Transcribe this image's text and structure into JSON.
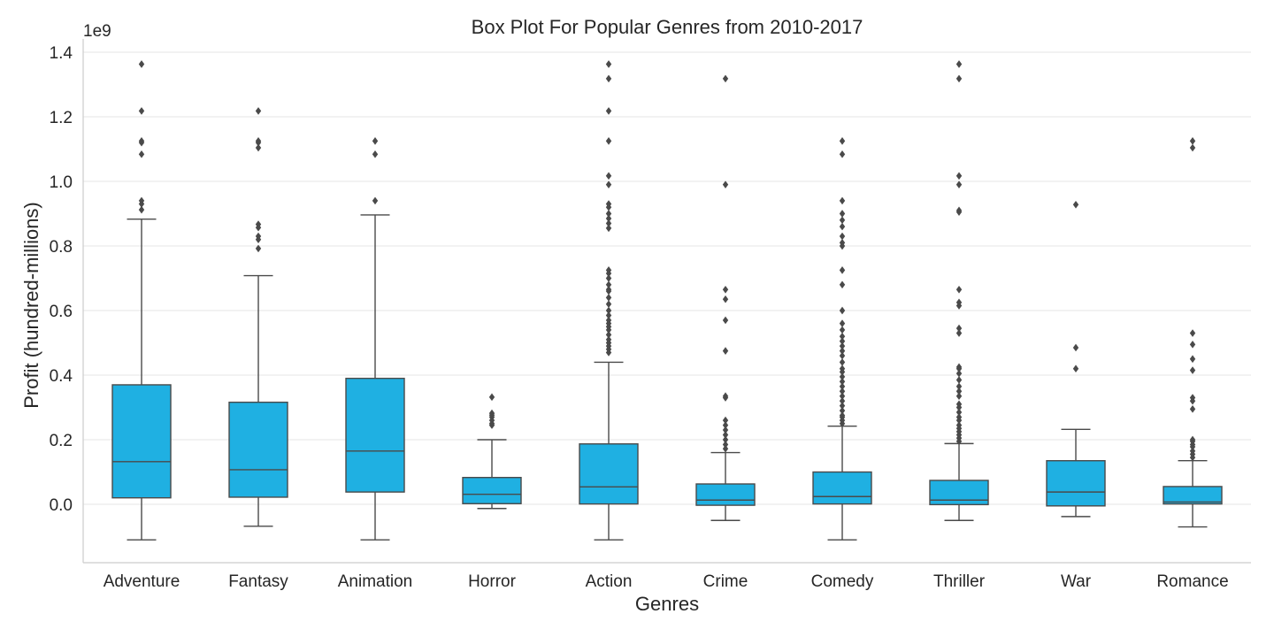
{
  "chart_data": {
    "type": "box",
    "title": "Box Plot For Popular Genres from 2010-2017",
    "xlabel": "Genres",
    "ylabel": "Profit (hundred-millions)",
    "y_offset_label": "1e9",
    "ylim": [
      -0.18,
      1.43
    ],
    "yticks": [
      0.0,
      0.2,
      0.4,
      0.6,
      0.8,
      1.0,
      1.2,
      1.4
    ],
    "ytick_labels": [
      "0.0",
      "0.2",
      "0.4",
      "0.6",
      "0.8",
      "1.0",
      "1.2",
      "1.4"
    ],
    "grid": true,
    "box_color": "#1fb0e2",
    "line_color": "#4a4a4a",
    "categories": [
      "Adventure",
      "Fantasy",
      "Animation",
      "Horror",
      "Action",
      "Crime",
      "Comedy",
      "Thriller",
      "War",
      "Romance"
    ],
    "boxes": [
      {
        "category": "Adventure",
        "whisker_low": -0.11,
        "q1": 0.02,
        "median": 0.132,
        "q3": 0.37,
        "whisker_high": 0.883,
        "outliers": [
          1.363,
          1.218,
          1.125,
          1.12,
          1.084,
          0.94,
          0.93,
          0.912
        ]
      },
      {
        "category": "Fantasy",
        "whisker_low": -0.068,
        "q1": 0.022,
        "median": 0.107,
        "q3": 0.316,
        "whisker_high": 0.708,
        "outliers": [
          1.218,
          1.125,
          1.12,
          1.104,
          0.867,
          0.857,
          0.83,
          0.82,
          0.792
        ]
      },
      {
        "category": "Animation",
        "whisker_low": -0.11,
        "q1": 0.038,
        "median": 0.165,
        "q3": 0.39,
        "whisker_high": 0.896,
        "outliers": [
          1.125,
          1.084,
          0.94
        ]
      },
      {
        "category": "Horror",
        "whisker_low": -0.013,
        "q1": 0.002,
        "median": 0.031,
        "q3": 0.083,
        "whisker_high": 0.2,
        "outliers": [
          0.332,
          0.282,
          0.276,
          0.27,
          0.26,
          0.25,
          0.245
        ]
      },
      {
        "category": "Action",
        "whisker_low": -0.11,
        "q1": 0.001,
        "median": 0.054,
        "q3": 0.187,
        "whisker_high": 0.44,
        "outliers": [
          1.363,
          1.318,
          1.218,
          1.125,
          1.017,
          0.99,
          0.93,
          0.92,
          0.9,
          0.885,
          0.87,
          0.855,
          0.725,
          0.715,
          0.7,
          0.68,
          0.665,
          0.66,
          0.64,
          0.62,
          0.6,
          0.585,
          0.57,
          0.56,
          0.55,
          0.54,
          0.525,
          0.51,
          0.5,
          0.49,
          0.48,
          0.47
        ]
      },
      {
        "category": "Crime",
        "whisker_low": -0.05,
        "q1": -0.003,
        "median": 0.013,
        "q3": 0.063,
        "whisker_high": 0.16,
        "outliers": [
          1.318,
          0.99,
          0.665,
          0.635,
          0.57,
          0.475,
          0.335,
          0.33,
          0.26,
          0.245,
          0.23,
          0.215,
          0.2,
          0.185,
          0.172
        ]
      },
      {
        "category": "Comedy",
        "whisker_low": -0.11,
        "q1": 0.001,
        "median": 0.024,
        "q3": 0.1,
        "whisker_high": 0.242,
        "outliers": [
          1.125,
          1.084,
          0.94,
          0.9,
          0.88,
          0.86,
          0.83,
          0.81,
          0.8,
          0.725,
          0.68,
          0.6,
          0.56,
          0.54,
          0.52,
          0.505,
          0.49,
          0.475,
          0.46,
          0.44,
          0.42,
          0.41,
          0.395,
          0.38,
          0.365,
          0.35,
          0.335,
          0.32,
          0.305,
          0.29,
          0.275,
          0.27,
          0.26,
          0.25
        ]
      },
      {
        "category": "Thriller",
        "whisker_low": -0.05,
        "q1": -0.001,
        "median": 0.013,
        "q3": 0.074,
        "whisker_high": 0.188,
        "outliers": [
          1.363,
          1.318,
          1.017,
          0.99,
          0.91,
          0.905,
          0.665,
          0.625,
          0.615,
          0.545,
          0.53,
          0.425,
          0.42,
          0.405,
          0.385,
          0.365,
          0.35,
          0.335,
          0.31,
          0.3,
          0.285,
          0.27,
          0.26,
          0.245,
          0.235,
          0.225,
          0.215,
          0.205,
          0.195
        ]
      },
      {
        "category": "War",
        "whisker_low": -0.038,
        "q1": -0.005,
        "median": 0.038,
        "q3": 0.135,
        "whisker_high": 0.232,
        "outliers": [
          0.928,
          0.485,
          0.42
        ]
      },
      {
        "category": "Romance",
        "whisker_low": -0.07,
        "q1": 0.001,
        "median": 0.007,
        "q3": 0.055,
        "whisker_high": 0.135,
        "outliers": [
          1.125,
          1.104,
          0.53,
          0.495,
          0.45,
          0.415,
          0.33,
          0.32,
          0.295,
          0.2,
          0.195,
          0.185,
          0.178,
          0.165,
          0.155,
          0.145
        ]
      }
    ]
  }
}
